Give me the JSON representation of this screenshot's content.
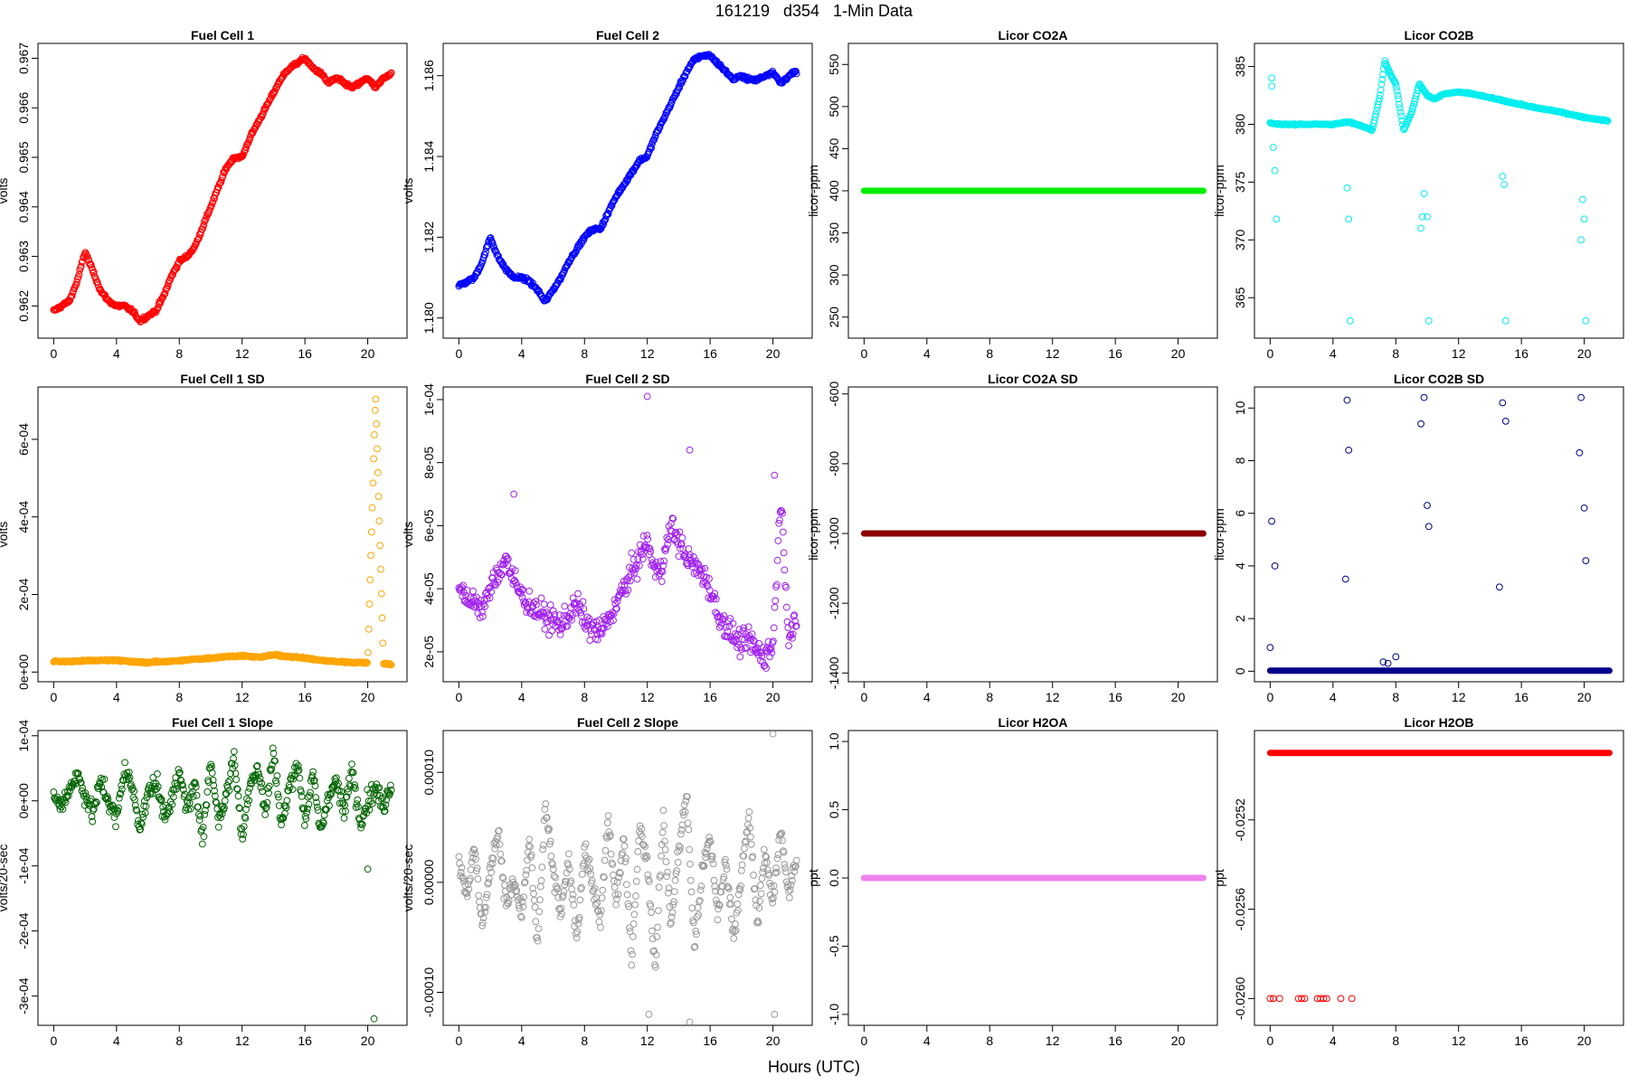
{
  "page": {
    "title": "161219   d354   1-Min Data",
    "x_caption": "Hours (UTC)"
  },
  "chart_data": [
    {
      "type": "scatter",
      "title": "Fuel Cell 1",
      "ylabel": "volts",
      "color": "#ff0000",
      "xlim": [
        -1,
        22.5
      ],
      "xticks": [
        "0",
        "4",
        "8",
        "12",
        "16",
        "20"
      ],
      "ylim": [
        0.96135,
        0.9673
      ],
      "yticks": [
        "0.962",
        "0.963",
        "0.964",
        "0.965",
        "0.966",
        "0.967"
      ],
      "ytick_values": [
        0.962,
        0.963,
        0.964,
        0.965,
        0.966,
        0.967
      ],
      "x": [
        0,
        0.5,
        1,
        1.5,
        2,
        2.5,
        3,
        3.5,
        4,
        4.5,
        5,
        5.5,
        6,
        6.5,
        7,
        7.5,
        8,
        8.5,
        9,
        9.5,
        10,
        10.5,
        11,
        11.5,
        12,
        12.5,
        13,
        13.5,
        14,
        14.5,
        15,
        15.5,
        16,
        16.5,
        17,
        17.5,
        18,
        18.5,
        19,
        19.5,
        20,
        20.5,
        21,
        21.5
      ],
      "y": [
        0.9619,
        0.962,
        0.9621,
        0.9625,
        0.9631,
        0.9627,
        0.9623,
        0.9621,
        0.962,
        0.962,
        0.9619,
        0.9617,
        0.9618,
        0.9619,
        0.9622,
        0.9626,
        0.9629,
        0.963,
        0.9632,
        0.9636,
        0.964,
        0.9644,
        0.9648,
        0.965,
        0.965,
        0.9654,
        0.9657,
        0.966,
        0.9663,
        0.9666,
        0.9668,
        0.9669,
        0.967,
        0.9668,
        0.9667,
        0.9665,
        0.9666,
        0.9665,
        0.9664,
        0.9665,
        0.9666,
        0.9664,
        0.9666,
        0.9667
      ]
    },
    {
      "type": "scatter",
      "title": "Fuel Cell 2",
      "ylabel": "volts",
      "color": "#0000ff",
      "xlim": [
        -1,
        22.5
      ],
      "xticks": [
        "0",
        "4",
        "8",
        "12",
        "16",
        "20"
      ],
      "ylim": [
        1.1795,
        1.1868
      ],
      "yticks": [
        "1.180",
        "1.182",
        "1.184",
        "1.186"
      ],
      "ytick_values": [
        1.18,
        1.182,
        1.184,
        1.186
      ],
      "x": [
        0,
        0.5,
        1,
        1.5,
        2,
        2.5,
        3,
        3.5,
        4,
        4.5,
        5,
        5.5,
        6,
        6.5,
        7,
        7.5,
        8,
        8.5,
        9,
        9.5,
        10,
        10.5,
        11,
        11.5,
        12,
        12.5,
        13,
        13.5,
        14,
        14.5,
        15,
        15.5,
        16,
        16.5,
        17,
        17.5,
        18,
        18.5,
        19,
        19.5,
        20,
        20.5,
        21,
        21.5
      ],
      "y": [
        1.1808,
        1.1809,
        1.181,
        1.1814,
        1.182,
        1.1815,
        1.1812,
        1.181,
        1.181,
        1.1809,
        1.1807,
        1.1804,
        1.1807,
        1.181,
        1.1814,
        1.1817,
        1.182,
        1.1822,
        1.1822,
        1.1826,
        1.183,
        1.1833,
        1.1836,
        1.1839,
        1.184,
        1.1845,
        1.1849,
        1.1853,
        1.1857,
        1.1861,
        1.1864,
        1.1865,
        1.1865,
        1.1863,
        1.1861,
        1.1859,
        1.186,
        1.1859,
        1.1859,
        1.186,
        1.1861,
        1.1858,
        1.186,
        1.1861
      ]
    },
    {
      "type": "scatter",
      "title": "Licor CO2A",
      "ylabel": "licor-ppm",
      "color": "#00ee00",
      "xlim": [
        -1,
        22.5
      ],
      "xticks": [
        "0",
        "4",
        "8",
        "12",
        "16",
        "20"
      ],
      "ylim": [
        225,
        575
      ],
      "yticks": [
        "250",
        "300",
        "350",
        "400",
        "450",
        "500",
        "550"
      ],
      "ytick_values": [
        250,
        300,
        350,
        400,
        450,
        500,
        550
      ],
      "constant_y": 400,
      "x_range": [
        0,
        21.6
      ]
    },
    {
      "type": "scatter",
      "title": "Licor CO2B",
      "ylabel": "licor-ppm",
      "color": "#00eeee",
      "xlim": [
        -1,
        22.5
      ],
      "xticks": [
        "0",
        "4",
        "8",
        "12",
        "16",
        "20"
      ],
      "ylim": [
        361.5,
        387
      ],
      "yticks": [
        "365",
        "370",
        "375",
        "380",
        "385"
      ],
      "ytick_values": [
        365,
        370,
        375,
        380,
        385
      ],
      "x": [
        0,
        0.5,
        1,
        2,
        3,
        4,
        4.5,
        5,
        5.5,
        6,
        6.5,
        7,
        7.3,
        7.6,
        8,
        8.5,
        9,
        9.5,
        10,
        10.5,
        11,
        12,
        13,
        14,
        15,
        16,
        17,
        18,
        19,
        20,
        21,
        21.5
      ],
      "y": [
        380.1,
        380.0,
        380.0,
        380.0,
        380.0,
        380.0,
        380.1,
        380.2,
        380.0,
        379.8,
        379.5,
        382.5,
        385.5,
        384.5,
        383.5,
        379.5,
        381.0,
        383.5,
        382.5,
        382.2,
        382.6,
        382.8,
        382.6,
        382.3,
        382.0,
        381.7,
        381.4,
        381.2,
        380.9,
        380.6,
        380.4,
        380.3
      ],
      "outliers_x": [
        0.1,
        0.1,
        0.2,
        0.3,
        0.4,
        4.9,
        5.0,
        5.1,
        9.6,
        9.7,
        9.8,
        10.0,
        10.1,
        14.8,
        14.9,
        15.0,
        19.8,
        19.9,
        20.0,
        20.1
      ],
      "outliers_y": [
        384,
        383.3,
        378,
        376,
        371.8,
        374.5,
        371.8,
        363.0,
        371,
        372,
        374,
        372,
        363.0,
        375.5,
        374.8,
        363.0,
        370,
        373.5,
        371.8,
        363.0
      ]
    },
    {
      "type": "scatter",
      "title": "Fuel Cell 1 SD",
      "ylabel": "volts",
      "color": "#ffa500",
      "xlim": [
        -1,
        22.5
      ],
      "xticks": [
        "0",
        "4",
        "8",
        "12",
        "16",
        "20"
      ],
      "ylim": [
        -2.5e-05,
        0.000735
      ],
      "yticks": [
        "0e+00",
        "2e-04",
        "4e-04",
        "6e-04"
      ],
      "ytick_values": [
        0,
        0.0002,
        0.0004,
        0.0006
      ],
      "x": [
        0,
        1,
        2,
        3,
        4,
        5,
        6,
        7,
        8,
        9,
        10,
        11,
        12,
        13,
        14,
        15,
        16,
        17,
        18,
        19,
        20,
        20.5,
        21,
        21.5
      ],
      "y": [
        2.8e-05,
        2.7e-05,
        2.9e-05,
        3e-05,
        3.1e-05,
        2.6e-05,
        2.5e-05,
        2.7e-05,
        2.9e-05,
        3.3e-05,
        3.6e-05,
        4e-05,
        4.2e-05,
        3.8e-05,
        4.4e-05,
        4e-05,
        3.6e-05,
        3e-05,
        2.7e-05,
        2.5e-05,
        2.4e-05,
        0.00072,
        2.2e-05,
        2e-05
      ]
    },
    {
      "type": "scatter",
      "title": "Fuel Cell 2 SD",
      "ylabel": "volts",
      "color": "#a020f0",
      "xlim": [
        -1,
        22.5
      ],
      "xticks": [
        "0",
        "4",
        "8",
        "12",
        "16",
        "20"
      ],
      "ylim": [
        1.05e-05,
        0.000104
      ],
      "yticks": [
        "2e-05",
        "4e-05",
        "6e-05",
        "8e-05",
        "1e-04"
      ],
      "ytick_values": [
        2e-05,
        4e-05,
        6e-05,
        8e-05,
        0.0001
      ],
      "x": [
        0,
        0.5,
        1,
        1.5,
        2,
        2.5,
        3,
        3.5,
        4,
        4.5,
        5,
        5.5,
        6,
        6.5,
        7,
        7.5,
        8,
        8.5,
        9,
        9.5,
        10,
        10.5,
        11,
        11.5,
        12,
        12.5,
        13,
        13.5,
        14,
        14.5,
        15,
        15.5,
        16,
        16.5,
        17,
        17.5,
        18,
        18.5,
        19,
        19.5,
        20,
        20.5,
        21,
        21.5
      ],
      "y": [
        4.2e-05,
        3.5e-05,
        3.7e-05,
        3.3e-05,
        4e-05,
        4.5e-05,
        5e-05,
        4.2e-05,
        3.8e-05,
        3.5e-05,
        3.3e-05,
        3.1e-05,
        3e-05,
        2.8e-05,
        3.2e-05,
        3.5e-05,
        3e-05,
        2.7e-05,
        2.6e-05,
        3e-05,
        3.5e-05,
        4e-05,
        4.5e-05,
        5e-05,
        5.5e-05,
        4.5e-05,
        4.8e-05,
        6e-05,
        5.5e-05,
        5e-05,
        4.7e-05,
        4.5e-05,
        4e-05,
        3.2e-05,
        2.8e-05,
        2.5e-05,
        2.2e-05,
        2.4e-05,
        2e-05,
        1.9e-05,
        2.2e-05,
        7e-05,
        2.5e-05,
        2.8e-05
      ],
      "outliers_x": [
        12,
        14.7,
        3.5,
        20.1
      ],
      "outliers_y": [
        0.000101,
        8.4e-05,
        7e-05,
        7.6e-05
      ]
    },
    {
      "type": "scatter",
      "title": "Licor CO2A SD",
      "ylabel": "licor-ppm",
      "color": "#8b0000",
      "xlim": [
        -1,
        22.5
      ],
      "xticks": [
        "0",
        "4",
        "8",
        "12",
        "16",
        "20"
      ],
      "ylim": [
        -1425,
        -580
      ],
      "yticks": [
        "-1400",
        "-1200",
        "-1000",
        "-800",
        "-600"
      ],
      "ytick_values": [
        -1400,
        -1200,
        -1000,
        -800,
        -600
      ],
      "constant_y": -1000,
      "x_range": [
        0,
        21.6
      ]
    },
    {
      "type": "scatter",
      "title": "Licor CO2B SD",
      "ylabel": "licor-ppm",
      "color": "#00008b",
      "xlim": [
        -1,
        22.5
      ],
      "xticks": [
        "0",
        "4",
        "8",
        "12",
        "16",
        "20"
      ],
      "ylim": [
        -0.4,
        10.8
      ],
      "yticks": [
        "0",
        "2",
        "4",
        "6",
        "8",
        "10"
      ],
      "ytick_values": [
        0,
        2,
        4,
        6,
        8,
        10
      ],
      "constant_y": 0.02,
      "x_range": [
        0,
        21.6
      ],
      "outliers_x": [
        0,
        0.1,
        0.3,
        4.8,
        4.9,
        5.0,
        7.2,
        7.5,
        8.0,
        9.6,
        9.8,
        10.0,
        10.1,
        14.6,
        14.8,
        15.0,
        19.7,
        19.8,
        20.0,
        20.1
      ],
      "outliers_y": [
        0.9,
        5.7,
        4.0,
        3.5,
        10.3,
        8.4,
        0.35,
        0.3,
        0.55,
        9.4,
        10.4,
        6.3,
        5.5,
        3.2,
        10.2,
        9.5,
        8.3,
        10.4,
        6.2,
        4.2
      ]
    },
    {
      "type": "scatter",
      "title": "Fuel Cell 1 Slope",
      "ylabel": "volts/20-sec",
      "color": "#006400",
      "xlim": [
        -1,
        22.5
      ],
      "xticks": [
        "0",
        "4",
        "8",
        "12",
        "16",
        "20"
      ],
      "ylim": [
        -0.000345,
        0.000108
      ],
      "yticks": [
        "-3e-04",
        "-2e-04",
        "-1e-04",
        "0e+00",
        "1e-04"
      ],
      "ytick_values": [
        -0.0003,
        -0.0002,
        -0.0001,
        0,
        0.0001
      ],
      "x": [
        0,
        0.5,
        1,
        1.5,
        2,
        2.5,
        3,
        3.5,
        4,
        4.5,
        5,
        5.5,
        6,
        6.5,
        7,
        7.5,
        8,
        8.5,
        9,
        9.5,
        10,
        10.5,
        11,
        11.5,
        12,
        12.5,
        13,
        13.5,
        14,
        14.5,
        15,
        15.5,
        16,
        16.5,
        17,
        17.5,
        18,
        18.5,
        19,
        19.5,
        20,
        20.5,
        21,
        21.5
      ],
      "y": [
        1e-05,
        -1e-05,
        2e-05,
        4e-05,
        1e-05,
        -2e-05,
        3e-05,
        0.0,
        -3e-05,
        5e-05,
        2e-05,
        -4e-05,
        1e-05,
        3e-05,
        -2e-05,
        0.0,
        4e-05,
        -1e-05,
        2e-05,
        -5e-05,
        6e-05,
        -3e-05,
        1e-05,
        7e-05,
        -6e-05,
        3e-05,
        5e-05,
        -2e-05,
        8e-05,
        -4e-05,
        2e-05,
        6e-05,
        -3e-05,
        4e-05,
        -5e-05,
        1e-05,
        3e-05,
        -2e-05,
        5e-05,
        -3e-05,
        0.0,
        2e-05,
        -1e-05,
        3e-05
      ],
      "outliers_x": [
        20.4,
        20.0
      ],
      "outliers_y": [
        -0.000335,
        -0.000105
      ]
    },
    {
      "type": "scatter",
      "title": "Fuel Cell 2 Slope",
      "ylabel": "volts/20-sec",
      "color": "#999999",
      "xlim": [
        -1,
        22.5
      ],
      "xticks": [
        "0",
        "4",
        "8",
        "12",
        "16",
        "20"
      ],
      "ylim": [
        -0.00013,
        0.000138
      ],
      "yticks": [
        "-0.00010",
        "0.00000",
        "0.00010"
      ],
      "ytick_values": [
        -0.0001,
        0,
        0.0001
      ],
      "x": [
        0,
        0.5,
        1,
        1.5,
        2,
        2.5,
        3,
        3.5,
        4,
        4.5,
        5,
        5.5,
        6,
        6.5,
        7,
        7.5,
        8,
        8.5,
        9,
        9.5,
        10,
        10.5,
        11,
        11.5,
        12,
        12.5,
        13,
        13.5,
        14,
        14.5,
        15,
        15.5,
        16,
        16.5,
        17,
        17.5,
        18,
        18.5,
        19,
        19.5,
        20,
        20.5,
        21,
        21.5
      ],
      "y": [
        2e-05,
        -1e-05,
        3e-05,
        -4e-05,
        1e-05,
        5e-05,
        -2e-05,
        0.0,
        -3e-05,
        4e-05,
        -6e-05,
        7e-05,
        1e-05,
        -3e-05,
        2e-05,
        -5e-05,
        3e-05,
        0.0,
        -4e-05,
        6e-05,
        -2e-05,
        4e-05,
        -7e-05,
        5e-05,
        2e-05,
        -8e-05,
        6e-05,
        -4e-05,
        3e-05,
        8e-05,
        -6e-05,
        1e-05,
        4e-05,
        -3e-05,
        2e-05,
        -5e-05,
        1e-05,
        6e-05,
        -4e-05,
        3e-05,
        -2e-05,
        5e-05,
        -1e-05,
        2e-05
      ],
      "outliers_x": [
        20,
        12.1,
        14.7,
        20.1
      ],
      "outliers_y": [
        0.000135,
        -0.00012,
        -0.000127,
        -0.00012
      ]
    },
    {
      "type": "scatter",
      "title": "Licor H2OA",
      "ylabel": "ppt",
      "color": "#ee82ee",
      "xlim": [
        -1,
        22.5
      ],
      "xticks": [
        "0",
        "4",
        "8",
        "12",
        "16",
        "20"
      ],
      "ylim": [
        -1.08,
        1.08
      ],
      "yticks": [
        "-1.0",
        "-0.5",
        "0.0",
        "0.5",
        "1.0"
      ],
      "ytick_values": [
        -1,
        -0.5,
        0,
        0.5,
        1
      ],
      "constant_y": 0,
      "x_range": [
        0,
        21.6
      ]
    },
    {
      "type": "scatter",
      "title": "Licor H2OB",
      "ylabel": "ppt",
      "color": "#ff0000",
      "xlim": [
        -1,
        22.5
      ],
      "xticks": [
        "0",
        "4",
        "8",
        "12",
        "16",
        "20"
      ],
      "ylim": [
        -0.02612,
        -0.0248
      ],
      "yticks": [
        "-0.0260",
        "-0.0256",
        "-0.0252"
      ],
      "ytick_values": [
        -0.026,
        -0.0256,
        -0.0252
      ],
      "constant_y": -0.0249,
      "x_range": [
        0,
        21.6
      ],
      "outliers_x": [
        0,
        0.2,
        0.6,
        1.8,
        2.0,
        2.2,
        3.0,
        3.2,
        3.4,
        3.6,
        4.5,
        5.2
      ],
      "outliers_y": [
        -0.026,
        -0.026,
        -0.026,
        -0.026,
        -0.026,
        -0.026,
        -0.026,
        -0.026,
        -0.026,
        -0.026,
        -0.026,
        -0.026
      ]
    }
  ]
}
